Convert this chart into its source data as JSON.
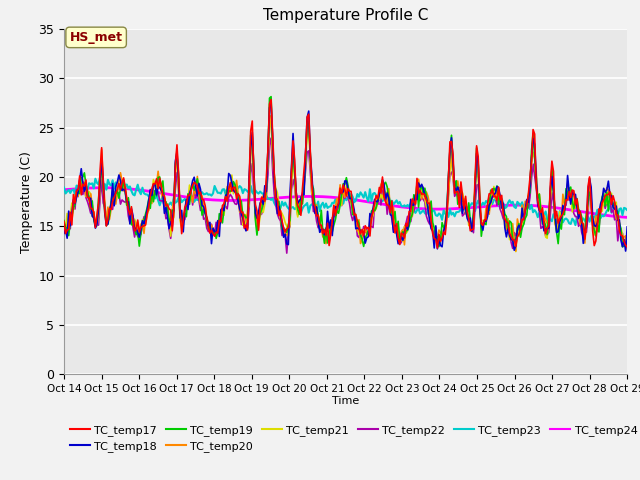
{
  "title": "Temperature Profile C",
  "xlabel": "Time",
  "ylabel": "Temperature (C)",
  "ylim": [
    0,
    35
  ],
  "xlim": [
    0,
    15
  ],
  "x_tick_labels": [
    "Oct 14",
    "Oct 15",
    "Oct 16",
    "Oct 17",
    "Oct 18",
    "Oct 19",
    "Oct 20",
    "Oct 21",
    "Oct 22",
    "Oct 23",
    "Oct 24",
    "Oct 25",
    "Oct 26",
    "Oct 27",
    "Oct 28",
    "Oct 29"
  ],
  "annotation": "HS_met",
  "annotation_color": "#8B0000",
  "annotation_bg": "#FFFFCC",
  "series_order": [
    "TC_temp17",
    "TC_temp18",
    "TC_temp19",
    "TC_temp20",
    "TC_temp21",
    "TC_temp22",
    "TC_temp23",
    "TC_temp24"
  ],
  "series": {
    "TC_temp17": {
      "color": "#FF0000",
      "lw": 1.2
    },
    "TC_temp18": {
      "color": "#0000CC",
      "lw": 1.2
    },
    "TC_temp19": {
      "color": "#00CC00",
      "lw": 1.2
    },
    "TC_temp20": {
      "color": "#FF8800",
      "lw": 1.2
    },
    "TC_temp21": {
      "color": "#DDDD00",
      "lw": 1.2
    },
    "TC_temp22": {
      "color": "#AA00AA",
      "lw": 1.2
    },
    "TC_temp23": {
      "color": "#00CCCC",
      "lw": 1.5
    },
    "TC_temp24": {
      "color": "#FF00FF",
      "lw": 2.0
    }
  },
  "bg_color": "#E8E8E8",
  "grid_color": "#FFFFFF",
  "fig_bg": "#F2F2F2"
}
